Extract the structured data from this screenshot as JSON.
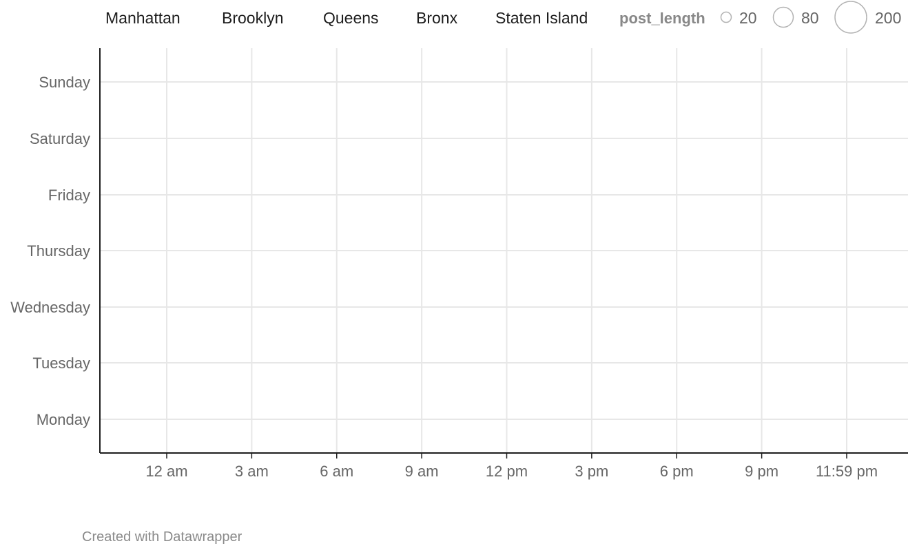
{
  "chart_data": {
    "type": "scatter",
    "title": "",
    "xlabel": "",
    "ylabel": "",
    "legend": {
      "placement": "top",
      "series": [
        "Manhattan",
        "Brooklyn",
        "Queens",
        "Bronx",
        "Staten Island"
      ],
      "size_title": "post_length",
      "size_values": [
        20,
        80,
        200
      ],
      "size_labels": [
        "20",
        "80",
        "200"
      ]
    },
    "x_ticks": [
      "12 am",
      "3 am",
      "6 am",
      "9 am",
      "12 pm",
      "3 pm",
      "6 pm",
      "9 pm",
      "11:59 pm"
    ],
    "y_categories": [
      "Sunday",
      "Saturday",
      "Friday",
      "Thursday",
      "Wednesday",
      "Tuesday",
      "Monday"
    ],
    "series": [
      {
        "name": "Manhattan",
        "points": []
      },
      {
        "name": "Brooklyn",
        "points": []
      },
      {
        "name": "Queens",
        "points": []
      },
      {
        "name": "Bronx",
        "points": []
      },
      {
        "name": "Staten Island",
        "points": []
      }
    ],
    "grid": true
  },
  "footer": {
    "credit": "Created with Datawrapper"
  },
  "colors": {
    "gridline": "#e7e7e7",
    "axis": "#1d1d1d",
    "label": "#666666",
    "credit": "#8a8a8a"
  }
}
